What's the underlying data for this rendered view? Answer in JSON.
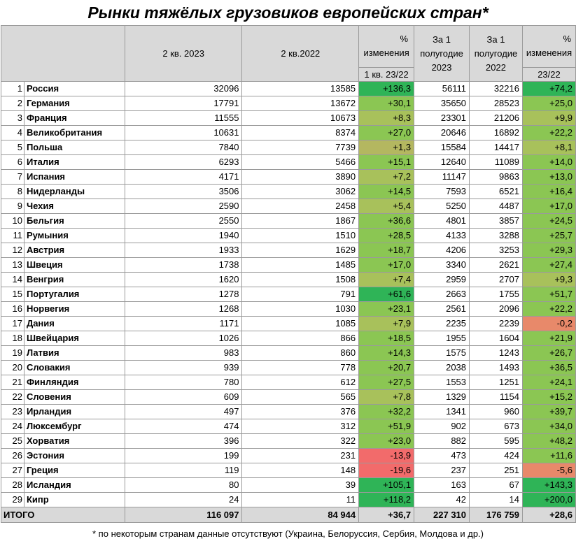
{
  "title": "Рынки тяжёлых грузовиков европейских стран*",
  "header": {
    "col_q2_2023": "2 кв. 2023",
    "col_q2_2022": "2 кв.2022",
    "col_change_q": [
      "%",
      "изменения"
    ],
    "col_change_q_sub": "1 кв. 23/22",
    "col_h1_2023": [
      "За 1",
      "полугодие",
      "2023"
    ],
    "col_h1_2022": [
      "За 1",
      "полугодие",
      "2022"
    ],
    "col_change_h": [
      "%",
      "изменения"
    ],
    "col_change_h_sub": "23/22"
  },
  "colors": {
    "header_bg": "#d9d9d9",
    "strong_green": "#2fb457",
    "mid_green": "#8bc653",
    "light_green": "#a8c15b",
    "olive": "#b4b760",
    "light_red": "#e8896a",
    "red": "#f26b6b"
  },
  "rows": [
    {
      "n": "1",
      "country": "Россия",
      "q2_2023": "32096",
      "q2_2022": "13585",
      "pct_q": "+136,3",
      "h1_2023": "56111",
      "h1_2022": "32216",
      "pct_h": "+74,2"
    },
    {
      "n": "2",
      "country": "Германия",
      "q2_2023": "17791",
      "q2_2022": "13672",
      "pct_q": "+30,1",
      "h1_2023": "35650",
      "h1_2022": "28523",
      "pct_h": "+25,0"
    },
    {
      "n": "3",
      "country": "Франция",
      "q2_2023": "11555",
      "q2_2022": "10673",
      "pct_q": "+8,3",
      "h1_2023": "23301",
      "h1_2022": "21206",
      "pct_h": "+9,9"
    },
    {
      "n": "4",
      "country": "Великобритания",
      "q2_2023": "10631",
      "q2_2022": "8374",
      "pct_q": "+27,0",
      "h1_2023": "20646",
      "h1_2022": "16892",
      "pct_h": "+22,2"
    },
    {
      "n": "5",
      "country": "Польша",
      "q2_2023": "7840",
      "q2_2022": "7739",
      "pct_q": "+1,3",
      "h1_2023": "15584",
      "h1_2022": "14417",
      "pct_h": "+8,1"
    },
    {
      "n": "6",
      "country": "Италия",
      "q2_2023": "6293",
      "q2_2022": "5466",
      "pct_q": "+15,1",
      "h1_2023": "12640",
      "h1_2022": "11089",
      "pct_h": "+14,0"
    },
    {
      "n": "7",
      "country": "Испания",
      "q2_2023": "4171",
      "q2_2022": "3890",
      "pct_q": "+7,2",
      "h1_2023": "11147",
      "h1_2022": "9863",
      "pct_h": "+13,0"
    },
    {
      "n": "8",
      "country": "Нидерланды",
      "q2_2023": "3506",
      "q2_2022": "3062",
      "pct_q": "+14,5",
      "h1_2023": "7593",
      "h1_2022": "6521",
      "pct_h": "+16,4"
    },
    {
      "n": "9",
      "country": "Чехия",
      "q2_2023": "2590",
      "q2_2022": "2458",
      "pct_q": "+5,4",
      "h1_2023": "5250",
      "h1_2022": "4487",
      "pct_h": "+17,0"
    },
    {
      "n": "10",
      "country": "Бельгия",
      "q2_2023": "2550",
      "q2_2022": "1867",
      "pct_q": "+36,6",
      "h1_2023": "4801",
      "h1_2022": "3857",
      "pct_h": "+24,5"
    },
    {
      "n": "11",
      "country": "Румыния",
      "q2_2023": "1940",
      "q2_2022": "1510",
      "pct_q": "+28,5",
      "h1_2023": "4133",
      "h1_2022": "3288",
      "pct_h": "+25,7"
    },
    {
      "n": "12",
      "country": "Австрия",
      "q2_2023": "1933",
      "q2_2022": "1629",
      "pct_q": "+18,7",
      "h1_2023": "4206",
      "h1_2022": "3253",
      "pct_h": "+29,3"
    },
    {
      "n": "13",
      "country": "Швеция",
      "q2_2023": "1738",
      "q2_2022": "1485",
      "pct_q": "+17,0",
      "h1_2023": "3340",
      "h1_2022": "2621",
      "pct_h": "+27,4"
    },
    {
      "n": "14",
      "country": "Венгрия",
      "q2_2023": "1620",
      "q2_2022": "1508",
      "pct_q": "+7,4",
      "h1_2023": "2959",
      "h1_2022": "2707",
      "pct_h": "+9,3"
    },
    {
      "n": "15",
      "country": "Португалия",
      "q2_2023": "1278",
      "q2_2022": "791",
      "pct_q": "+61,6",
      "h1_2023": "2663",
      "h1_2022": "1755",
      "pct_h": "+51,7"
    },
    {
      "n": "16",
      "country": "Норвегия",
      "q2_2023": "1268",
      "q2_2022": "1030",
      "pct_q": "+23,1",
      "h1_2023": "2561",
      "h1_2022": "2096",
      "pct_h": "+22,2"
    },
    {
      "n": "17",
      "country": "Дания",
      "q2_2023": "1171",
      "q2_2022": "1085",
      "pct_q": "+7,9",
      "h1_2023": "2235",
      "h1_2022": "2239",
      "pct_h": "-0,2"
    },
    {
      "n": "18",
      "country": "Швейцария",
      "q2_2023": "1026",
      "q2_2022": "866",
      "pct_q": "+18,5",
      "h1_2023": "1955",
      "h1_2022": "1604",
      "pct_h": "+21,9"
    },
    {
      "n": "19",
      "country": "Латвия",
      "q2_2023": "983",
      "q2_2022": "860",
      "pct_q": "+14,3",
      "h1_2023": "1575",
      "h1_2022": "1243",
      "pct_h": "+26,7"
    },
    {
      "n": "20",
      "country": "Словакия",
      "q2_2023": "939",
      "q2_2022": "778",
      "pct_q": "+20,7",
      "h1_2023": "2038",
      "h1_2022": "1493",
      "pct_h": "+36,5"
    },
    {
      "n": "21",
      "country": "Финляндия",
      "q2_2023": "780",
      "q2_2022": "612",
      "pct_q": "+27,5",
      "h1_2023": "1553",
      "h1_2022": "1251",
      "pct_h": "+24,1"
    },
    {
      "n": "22",
      "country": "Словения",
      "q2_2023": "609",
      "q2_2022": "565",
      "pct_q": "+7,8",
      "h1_2023": "1329",
      "h1_2022": "1154",
      "pct_h": "+15,2"
    },
    {
      "n": "23",
      "country": "Ирландия",
      "q2_2023": "497",
      "q2_2022": "376",
      "pct_q": "+32,2",
      "h1_2023": "1341",
      "h1_2022": "960",
      "pct_h": "+39,7"
    },
    {
      "n": "24",
      "country": "Люксембург",
      "q2_2023": "474",
      "q2_2022": "312",
      "pct_q": "+51,9",
      "h1_2023": "902",
      "h1_2022": "673",
      "pct_h": "+34,0"
    },
    {
      "n": "25",
      "country": "Хорватия",
      "q2_2023": "396",
      "q2_2022": "322",
      "pct_q": "+23,0",
      "h1_2023": "882",
      "h1_2022": "595",
      "pct_h": "+48,2"
    },
    {
      "n": "26",
      "country": "Эстония",
      "q2_2023": "199",
      "q2_2022": "231",
      "pct_q": "-13,9",
      "h1_2023": "473",
      "h1_2022": "424",
      "pct_h": "+11,6"
    },
    {
      "n": "27",
      "country": "Греция",
      "q2_2023": "119",
      "q2_2022": "148",
      "pct_q": "-19,6",
      "h1_2023": "237",
      "h1_2022": "251",
      "pct_h": "-5,6"
    },
    {
      "n": "28",
      "country": "Исландия",
      "q2_2023": "80",
      "q2_2022": "39",
      "pct_q": "+105,1",
      "h1_2023": "163",
      "h1_2022": "67",
      "pct_h": "+143,3"
    },
    {
      "n": "29",
      "country": "Кипр",
      "q2_2023": "24",
      "q2_2022": "11",
      "pct_q": "+118,2",
      "h1_2023": "42",
      "h1_2022": "14",
      "pct_h": "+200,0"
    }
  ],
  "total": {
    "label": "ИТОГО",
    "q2_2023": "116 097",
    "q2_2022": "84 944",
    "pct_q": "+36,7",
    "h1_2023": "227 310",
    "h1_2022": "176 759",
    "pct_h": "+28,6"
  },
  "footnote": "* по некоторым странам данные отсутствуют (Украина, Белоруссия, Сербия, Молдова и др.)"
}
